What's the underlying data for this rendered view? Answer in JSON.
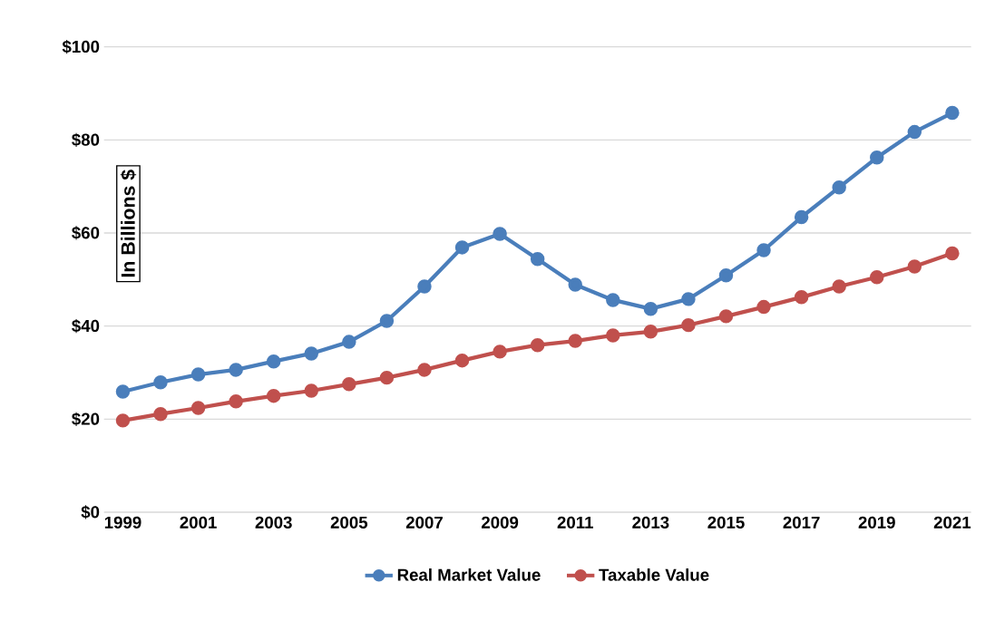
{
  "chart_data": {
    "type": "line",
    "ylabel": "In Billions $",
    "x": [
      1999,
      2000,
      2001,
      2002,
      2003,
      2004,
      2005,
      2006,
      2007,
      2008,
      2009,
      2010,
      2011,
      2012,
      2013,
      2014,
      2015,
      2016,
      2017,
      2018,
      2019,
      2020,
      2021
    ],
    "series": [
      {
        "name": "Real Market Value",
        "color": "#4a7ebb",
        "values": [
          25.9,
          27.9,
          29.6,
          30.6,
          32.4,
          34.1,
          36.6,
          41.1,
          48.5,
          56.9,
          59.8,
          54.4,
          48.9,
          45.6,
          43.7,
          45.8,
          50.9,
          56.3,
          63.4,
          69.8,
          76.2,
          81.7,
          85.8
        ]
      },
      {
        "name": "Taxable Value",
        "color": "#c0504d",
        "values": [
          19.7,
          21.1,
          22.4,
          23.8,
          25.0,
          26.1,
          27.5,
          28.9,
          30.6,
          32.6,
          34.5,
          35.9,
          36.8,
          38.0,
          38.8,
          40.2,
          42.1,
          44.1,
          46.2,
          48.5,
          50.5,
          52.8,
          55.6
        ]
      }
    ],
    "xlim": [
      1998.5,
      2021.5
    ],
    "xticks": [
      1999,
      2001,
      2003,
      2005,
      2007,
      2009,
      2011,
      2013,
      2015,
      2017,
      2019,
      2021
    ],
    "ylim": [
      0,
      100
    ],
    "yticks": [
      {
        "value": 0,
        "label": "$0"
      },
      {
        "value": 20,
        "label": "$20"
      },
      {
        "value": 40,
        "label": "$40"
      },
      {
        "value": 60,
        "label": "$60"
      },
      {
        "value": 80,
        "label": "$80"
      },
      {
        "value": 100,
        "label": "$100"
      }
    ],
    "grid": "y",
    "legend": "bottom",
    "marker": "circle",
    "line_style": "solid"
  }
}
